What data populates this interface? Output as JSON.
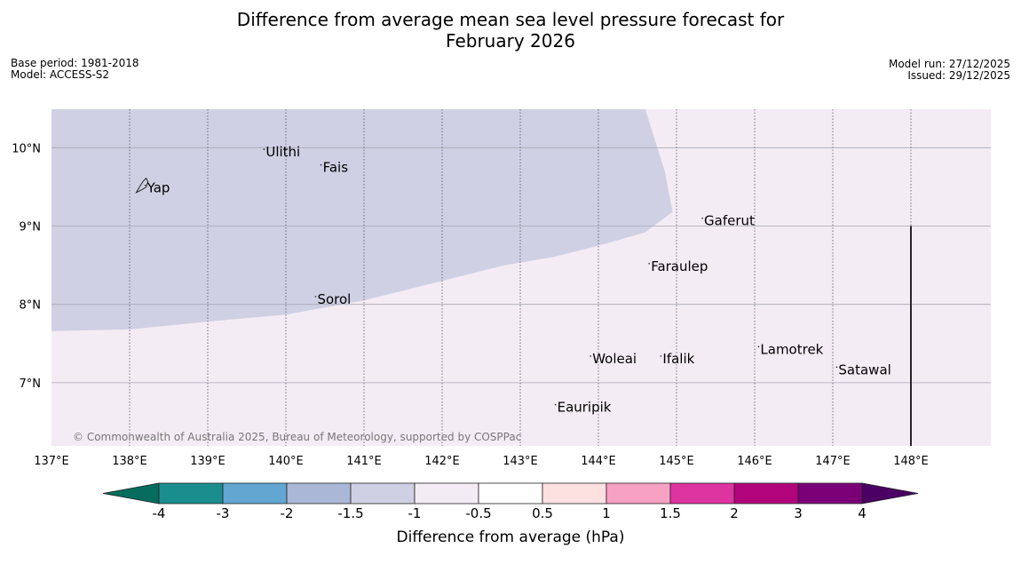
{
  "title_line1": "Difference from average mean sea level pressure forecast for",
  "title_line2": "February 2026",
  "meta": {
    "base_period": "Base period: 1981-2018",
    "model": "Model: ACCESS-S2",
    "model_run": "Model run: 27/12/2025",
    "issued": "Issued: 29/12/2025"
  },
  "copyright": "© Commonwealth of Australia 2025, Bureau of Meteorology, supported by COSPPac",
  "map": {
    "lon_range": [
      137,
      149
    ],
    "lat_range": [
      6.2,
      10.5
    ],
    "lon_ticks": [
      {
        "value": 137,
        "label": "137°E"
      },
      {
        "value": 138,
        "label": "138°E"
      },
      {
        "value": 139,
        "label": "139°E"
      },
      {
        "value": 140,
        "label": "140°E"
      },
      {
        "value": 141,
        "label": "141°E"
      },
      {
        "value": 142,
        "label": "142°E"
      },
      {
        "value": 143,
        "label": "143°E"
      },
      {
        "value": 144,
        "label": "144°E"
      },
      {
        "value": 145,
        "label": "145°E"
      },
      {
        "value": 146,
        "label": "146°E"
      },
      {
        "value": 147,
        "label": "147°E"
      },
      {
        "value": 148,
        "label": "148°E"
      }
    ],
    "lat_ticks": [
      {
        "value": 10,
        "label": "10°N"
      },
      {
        "value": 9,
        "label": "9°N"
      },
      {
        "value": 8,
        "label": "8°N"
      },
      {
        "value": 7,
        "label": "7°N"
      }
    ],
    "background_color": "#f4ecf4",
    "anomaly_region_color": "#d0d0e4",
    "anomaly_boundary": [
      [
        137,
        7.66
      ],
      [
        138,
        7.68
      ],
      [
        139,
        7.78
      ],
      [
        140,
        7.87
      ],
      [
        141,
        8.05
      ],
      [
        142,
        8.3
      ],
      [
        142.8,
        8.5
      ],
      [
        143.4,
        8.6
      ],
      [
        144,
        8.75
      ],
      [
        144.6,
        8.92
      ],
      [
        144.95,
        9.18
      ],
      [
        144.85,
        9.7
      ],
      [
        144.6,
        10.5
      ],
      [
        137,
        10.5
      ]
    ],
    "places": [
      {
        "name": "Ulithi",
        "lon": 139.72,
        "lat": 9.98
      },
      {
        "name": "Fais",
        "lon": 140.45,
        "lat": 9.78
      },
      {
        "name": "Yap",
        "lon": 138.2,
        "lat": 9.52
      },
      {
        "name": "Gaferut",
        "lon": 145.33,
        "lat": 9.1
      },
      {
        "name": "Faraulep",
        "lon": 144.65,
        "lat": 8.52
      },
      {
        "name": "Sorol",
        "lon": 140.38,
        "lat": 8.1
      },
      {
        "name": "Lamotrek",
        "lon": 146.05,
        "lat": 7.46
      },
      {
        "name": "Satawal",
        "lon": 147.05,
        "lat": 7.2
      },
      {
        "name": "Woleai",
        "lon": 143.9,
        "lat": 7.34
      },
      {
        "name": "Ifalik",
        "lon": 144.8,
        "lat": 7.34
      },
      {
        "name": "Eauripik",
        "lon": 143.45,
        "lat": 6.72
      }
    ],
    "boundary_line": {
      "lon": 148,
      "lat_from": 6.2,
      "lat_to": 9.0
    }
  },
  "colorbar": {
    "ticks": [
      "-4",
      "-3",
      "-2",
      "-1.5",
      "-1",
      "-0.5",
      "0.5",
      "1",
      "1.5",
      "2",
      "3",
      "4"
    ],
    "colors": [
      "#1a8e8e",
      "#62a6d2",
      "#aab7d6",
      "#d0d0e4",
      "#f4ecf4",
      "#ffffff",
      "#fde0e0",
      "#f7a1c3",
      "#de34a1",
      "#b1047c",
      "#7b0077"
    ],
    "under_color": "#066c5e",
    "over_color": "#4a0064",
    "label": "Difference from average (hPa)"
  }
}
